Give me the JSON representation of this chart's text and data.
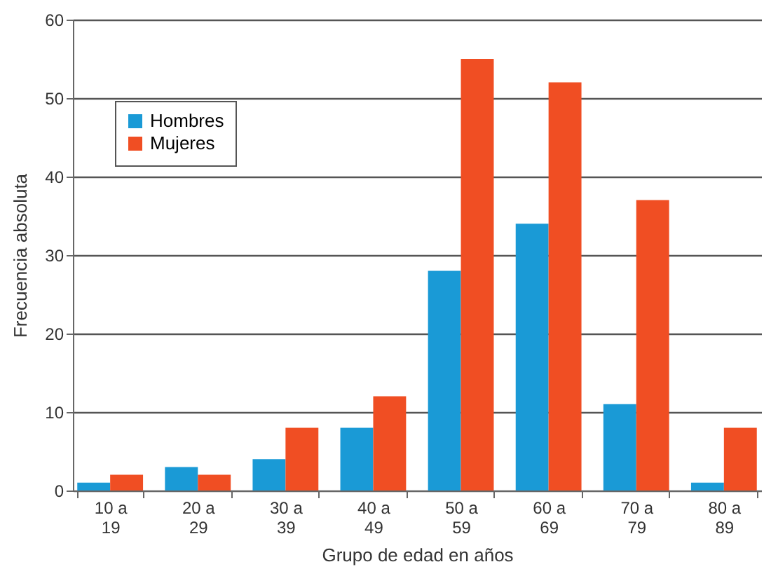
{
  "chart_data": {
    "type": "bar",
    "xlabel": "Grupo de edad en años",
    "ylabel": "Frecuencia absoluta",
    "categories": [
      "10 a 19",
      "20 a 29",
      "30 a 39",
      "40 a 49",
      "50 a 59",
      "60 a 69",
      "70 a 79",
      "80 a 89"
    ],
    "series": [
      {
        "name": "Hombres",
        "color": "#1a9ad6",
        "values": [
          1,
          3,
          4,
          8,
          28,
          34,
          11,
          1
        ]
      },
      {
        "name": "Mujeres",
        "color": "#f04e23",
        "values": [
          2,
          2,
          8,
          12,
          55,
          52,
          37,
          8
        ]
      }
    ],
    "ylim": [
      0,
      60
    ],
    "yticks": [
      0,
      10,
      20,
      30,
      40,
      50,
      60
    ],
    "grid": "y",
    "legend": "top left"
  }
}
